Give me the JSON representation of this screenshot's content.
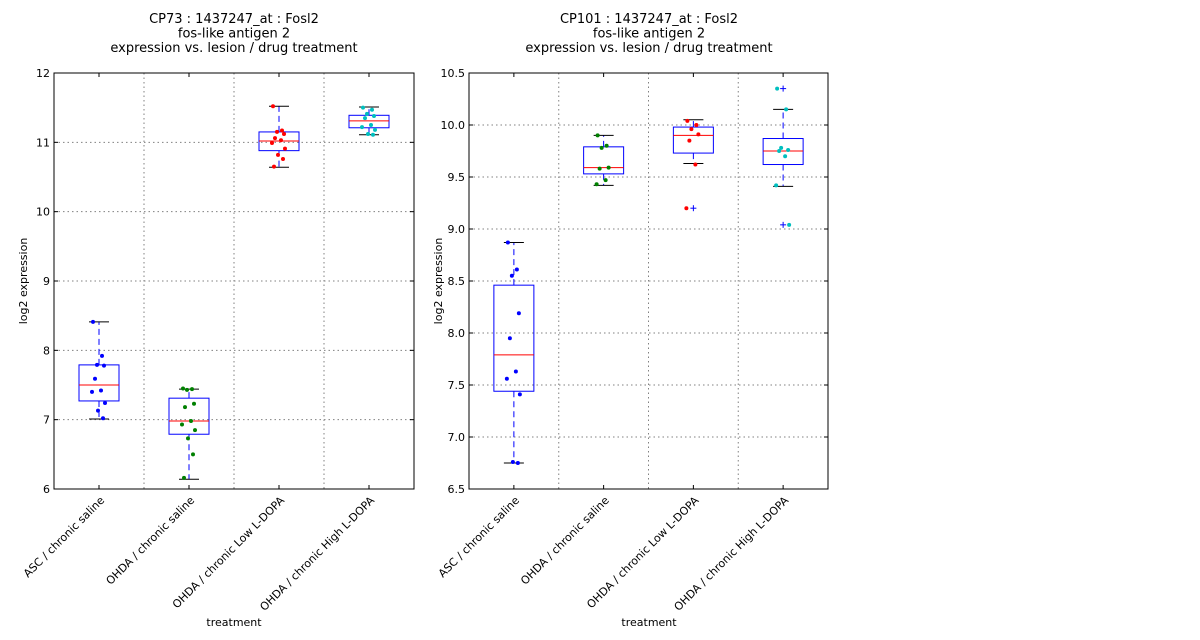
{
  "chart_data": [
    {
      "type": "box",
      "title": [
        "CP73 : 1437247_at : Fosl2",
        "fos-like antigen 2",
        "expression vs. lesion / drug treatment"
      ],
      "xlabel": "treatment",
      "ylabel": "log2 expression",
      "ylim": [
        6,
        12
      ],
      "yticks": [
        6,
        7,
        8,
        9,
        10,
        11,
        12
      ],
      "ytick_labels": [
        "6",
        "7",
        "8",
        "9",
        "10",
        "11",
        "12"
      ],
      "grid": true,
      "categories": [
        "ASC / chronic saline",
        "OHDA / chronic saline",
        "OHDA / chronic Low L-DOPA",
        "OHDA / chronic High L-DOPA"
      ],
      "boxes": [
        {
          "whislo": 7.01,
          "q1": 7.27,
          "med": 7.5,
          "q3": 7.79,
          "whishi": 8.41,
          "fliers": [],
          "point_color": "#0000ff",
          "points": [
            8.41,
            7.92,
            7.79,
            7.78,
            7.59,
            7.42,
            7.4,
            7.24,
            7.13,
            7.02
          ]
        },
        {
          "whislo": 6.14,
          "q1": 6.79,
          "med": 6.98,
          "q3": 7.31,
          "whishi": 7.44,
          "fliers": [],
          "point_color": "#008000",
          "points": [
            7.45,
            7.44,
            7.43,
            7.23,
            7.18,
            6.98,
            6.93,
            6.85,
            6.73,
            6.5,
            6.16
          ]
        },
        {
          "whislo": 10.64,
          "q1": 10.88,
          "med": 11.02,
          "q3": 11.15,
          "whishi": 11.52,
          "fliers": [],
          "point_color": "#ff0000",
          "points": [
            11.52,
            11.17,
            11.15,
            11.12,
            11.06,
            11.03,
            10.99,
            10.91,
            10.82,
            10.76,
            10.65
          ]
        },
        {
          "whislo": 11.11,
          "q1": 11.21,
          "med": 11.31,
          "q3": 11.39,
          "whishi": 11.51,
          "fliers": [],
          "point_color": "#00bfbf",
          "points": [
            11.5,
            11.47,
            11.41,
            11.38,
            11.35,
            11.25,
            11.22,
            11.18,
            11.12,
            11.11
          ]
        }
      ]
    },
    {
      "type": "box",
      "title": [
        "CP101 : 1437247_at : Fosl2",
        "fos-like antigen 2",
        "expression vs. lesion / drug treatment"
      ],
      "xlabel": "treatment",
      "ylabel": "log2 expression",
      "ylim": [
        6.5,
        10.5
      ],
      "yticks": [
        6.5,
        7.0,
        7.5,
        8.0,
        8.5,
        9.0,
        9.5,
        10.0,
        10.5
      ],
      "ytick_labels": [
        "6.5",
        "7.0",
        "7.5",
        "8.0",
        "8.5",
        "9.0",
        "9.5",
        "10.0",
        "10.5"
      ],
      "grid": true,
      "categories": [
        "ASC / chronic saline",
        "OHDA / chronic saline",
        "OHDA / chronic Low L-DOPA",
        "OHDA / chronic High L-DOPA"
      ],
      "boxes": [
        {
          "whislo": 6.75,
          "q1": 7.44,
          "med": 7.79,
          "q3": 8.46,
          "whishi": 8.87,
          "fliers": [],
          "point_color": "#0000ff",
          "points": [
            8.87,
            8.61,
            8.55,
            8.19,
            7.95,
            7.63,
            7.56,
            7.41,
            6.76,
            6.75
          ]
        },
        {
          "whislo": 9.42,
          "q1": 9.53,
          "med": 9.59,
          "q3": 9.79,
          "whishi": 9.9,
          "fliers": [],
          "point_color": "#008000",
          "points": [
            9.9,
            9.8,
            9.78,
            9.59,
            9.58,
            9.47,
            9.43
          ]
        },
        {
          "whislo": 9.63,
          "q1": 9.73,
          "med": 9.9,
          "q3": 9.98,
          "whishi": 10.05,
          "fliers": [
            9.2
          ],
          "point_color": "#ff0000",
          "points": [
            10.04,
            10.0,
            9.96,
            9.91,
            9.85,
            9.62,
            9.2
          ]
        },
        {
          "whislo": 9.41,
          "q1": 9.62,
          "med": 9.75,
          "q3": 9.87,
          "whishi": 10.15,
          "fliers": [
            10.35,
            9.04
          ],
          "point_color": "#00bfbf",
          "points": [
            10.35,
            10.15,
            9.78,
            9.76,
            9.75,
            9.7,
            9.42,
            9.04
          ]
        }
      ]
    }
  ]
}
